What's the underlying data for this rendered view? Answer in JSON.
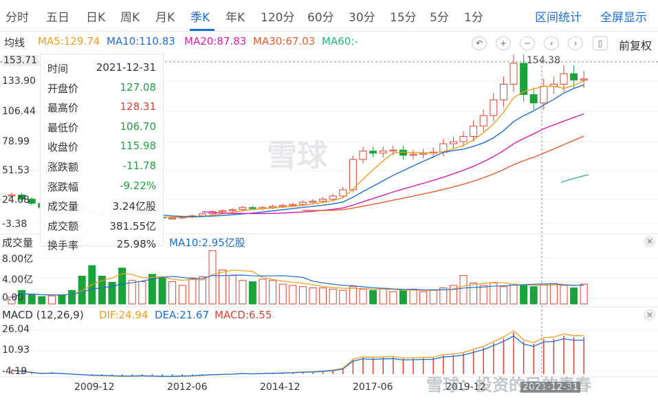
{
  "tabs": [
    "分时",
    "五日",
    "日K",
    "周K",
    "月K",
    "季K",
    "年K",
    "120分",
    "60分",
    "30分",
    "15分",
    "5分",
    "1分"
  ],
  "active_tab": "季K",
  "right_links": {
    "interval_stats": "区间统计",
    "fullscreen": "全屏显示"
  },
  "ma_legend": {
    "label": "均线",
    "ma5": "MA5:129.74",
    "ma10": "MA10:110.83",
    "ma20": "MA20:87.83",
    "ma30": "MA30:67.03",
    "ma60": "MA60:-"
  },
  "toolbar": {
    "price_adjust": "前复权"
  },
  "price_axis": [
    "153.71",
    "133.90",
    "106.44",
    "78.99",
    "51.53",
    "24.08",
    "-3.38"
  ],
  "high_marker": "154.38",
  "tooltip": {
    "rows": [
      {
        "key": "时间",
        "value": "2021-12-31",
        "color": "#333"
      },
      {
        "key": "开盘价",
        "value": "127.08",
        "color": "#1aa33b"
      },
      {
        "key": "最高价",
        "value": "128.31",
        "color": "#e0402f"
      },
      {
        "key": "最低价",
        "value": "106.70",
        "color": "#1aa33b"
      },
      {
        "key": "收盘价",
        "value": "115.98",
        "color": "#1aa33b"
      },
      {
        "key": "涨跌额",
        "value": "-11.78",
        "color": "#1aa33b"
      },
      {
        "key": "涨跌幅",
        "value": "-9.22%",
        "color": "#1aa33b"
      },
      {
        "key": "成交量",
        "value": "3.24亿股",
        "color": "#333"
      },
      {
        "key": "成交额",
        "value": "381.55亿",
        "color": "#333"
      },
      {
        "key": "换手率",
        "value": "25.98%",
        "color": "#333"
      }
    ]
  },
  "volume_panel": {
    "label": "成交量",
    "ma10": "MA10:2.95亿股",
    "axis": [
      "8.00亿",
      "4.00亿",
      "0.00"
    ]
  },
  "macd_panel": {
    "label": "MACD (12,26,9)",
    "dif": "DIF:24.94",
    "dea": "DEA:21.67",
    "macd": "MACD:6.55",
    "axis": [
      "26.04",
      "10.93",
      "-4.19"
    ]
  },
  "x_axis": [
    "2009-12",
    "2012-06",
    "2014-12",
    "2017-06",
    "2019-12",
    "2021-12-31"
  ],
  "watermark": {
    "logo_text": "雪球",
    "footer": "雪球：投资的民的青春"
  },
  "colors": {
    "up": "#e0402f",
    "down": "#1aa33b",
    "ma5": "#f39c1f",
    "ma10": "#1a6ed8",
    "ma20": "#d81bb0",
    "ma30": "#ef5a2c",
    "ma60": "#22b573",
    "accent": "#1a6ed8"
  }
}
